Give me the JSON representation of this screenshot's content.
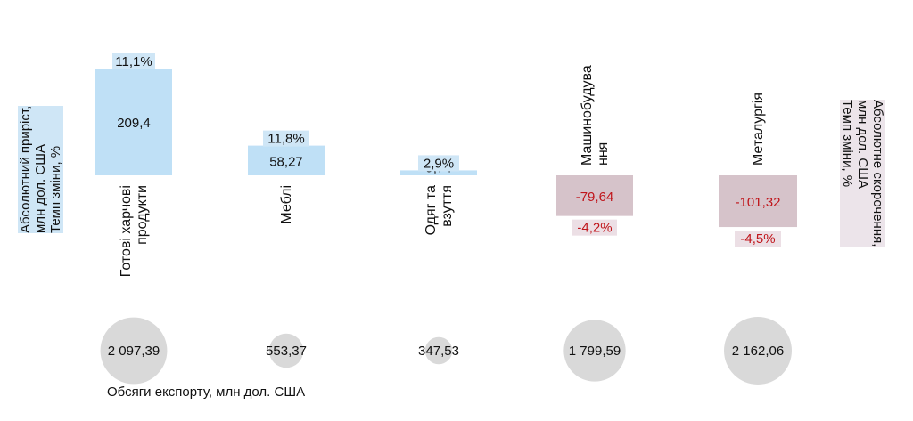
{
  "left_axis_label": [
    "Абсолютний приріст,",
    "млн дол. США",
    "Темп зміни, %"
  ],
  "right_axis_label": [
    "Абсолютне скорочення,",
    "млн дол. США",
    "Темп зміни, %"
  ],
  "bottom_label": "Обсяги експорту, млн дол. США",
  "colors": {
    "positive_bar": "#bfe0f6",
    "negative_bar": "#d6c3ca",
    "negative_text": "#c0151b",
    "bubble": "#d9d9d9",
    "positive_label_bg": "#cfe6f6",
    "negative_label_bg": "#ecdfe5"
  },
  "chart_data": {
    "type": "bar",
    "categories": [
      [
        "Готові харчові",
        "продукти"
      ],
      [
        "Меблі"
      ],
      [
        "Одяг та",
        "взуття"
      ],
      [
        "Машинобудува",
        "ння"
      ],
      [
        "Металургія"
      ]
    ],
    "absolute_change": [
      209.4,
      58.27,
      9.74,
      -79.64,
      -101.32
    ],
    "absolute_change_labels": [
      "209,4",
      "58,27",
      "9,74",
      "-79,64",
      "-101,32"
    ],
    "growth_rate_labels": [
      "11,1%",
      "11,8%",
      "2,9%",
      "-4,2%",
      "-4,5%"
    ],
    "export_volume": [
      2097.39,
      553.37,
      347.53,
      1799.59,
      2162.06
    ],
    "export_volume_labels": [
      "2 097,39",
      "553,37",
      "347,53",
      "1 799,59",
      "2 162,06"
    ]
  }
}
